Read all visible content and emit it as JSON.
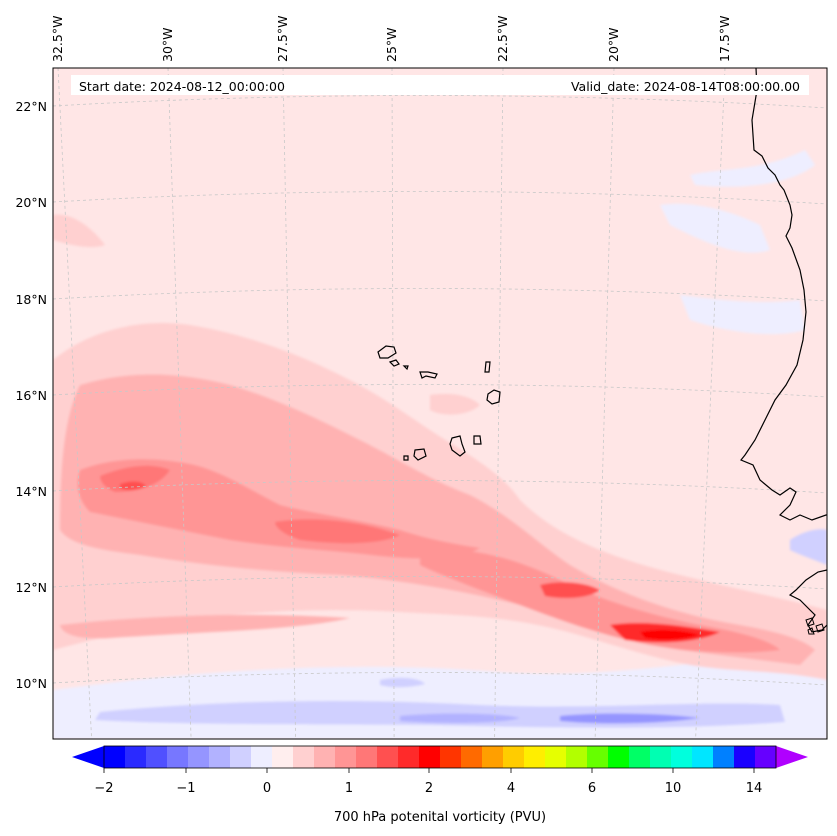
{
  "map": {
    "projection": "lambert-conformal",
    "extent": {
      "lon_min": -32.5,
      "lon_max": -15.5,
      "lat_min": 9,
      "lat_max": 22.5
    },
    "lon_ticks": [
      {
        "value": -32.5,
        "label": "32.5°W"
      },
      {
        "value": -30.0,
        "label": "30°W"
      },
      {
        "value": -27.5,
        "label": "27.5°W"
      },
      {
        "value": -25.0,
        "label": "25°W"
      },
      {
        "value": -22.5,
        "label": "22.5°W"
      },
      {
        "value": -20.0,
        "label": "20°W"
      },
      {
        "value": -17.5,
        "label": "17.5°W"
      }
    ],
    "lat_ticks": [
      {
        "value": 22,
        "label": "22°N"
      },
      {
        "value": 20,
        "label": "20°N"
      },
      {
        "value": 18,
        "label": "18°N"
      },
      {
        "value": 16,
        "label": "16°N"
      },
      {
        "value": 14,
        "label": "14°N"
      },
      {
        "value": 12,
        "label": "12°N"
      },
      {
        "value": 10,
        "label": "10°N"
      }
    ],
    "start_date": "Start date: 2024-08-12_00:00:00",
    "valid_date": "Valid_date: 2024-08-14T08:00:00.00",
    "background_color": "#ffe6e6",
    "features": [
      "Cape Verde islands",
      "West African coastline (Senegal, Gambia, Guinea-Bissau)"
    ]
  },
  "colorbar": {
    "label": "700 hPa potenital vorticity (PVU)",
    "tick_labels": [
      "−2",
      "−1",
      "0",
      "1",
      "2",
      "4",
      "6",
      "10",
      "14"
    ],
    "colors": [
      "#0000ff",
      "#2a2aff",
      "#5050ff",
      "#7777ff",
      "#9595ff",
      "#b2b2ff",
      "#d0d0ff",
      "#eeeeff",
      "#ffeeee",
      "#ffd0d0",
      "#ffb2b2",
      "#ff9595",
      "#ff7777",
      "#ff5050",
      "#ff2a2a",
      "#ff0000",
      "#ff3500",
      "#ff6a00",
      "#ff9f00",
      "#ffcc00",
      "#ffee00",
      "#e6ff00",
      "#b2ff00",
      "#66ff00",
      "#00ff00",
      "#00ff66",
      "#00ffb2",
      "#00ffdd",
      "#00e6ff",
      "#0080ff",
      "#1a00ff",
      "#6600ff"
    ],
    "under_color": "#0000ff",
    "over_color": "#b000ff"
  }
}
